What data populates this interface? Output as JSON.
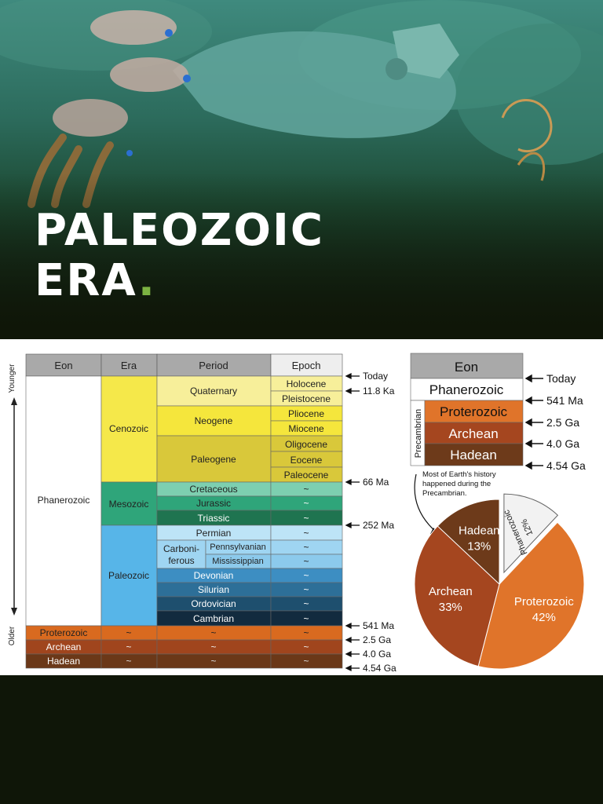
{
  "title": {
    "line1": "PALEOZOIC",
    "line2": "ERA",
    "dot": "."
  },
  "table": {
    "headers": [
      "Eon",
      "Era",
      "Period",
      "Epoch"
    ],
    "axis": {
      "top": "Younger",
      "bottom": "Older"
    },
    "eons": {
      "phanerozoic": "Phanerozoic",
      "proterozoic": "Proterozoic",
      "archean": "Archean",
      "hadean": "Hadean"
    },
    "eras": {
      "cenozoic": "Cenozoic",
      "mesozoic": "Mesozoic",
      "paleozoic": "Paleozoic"
    },
    "periods": {
      "quaternary": "Quaternary",
      "neogene": "Neogene",
      "paleogene": "Paleogene",
      "cretaceous": "Cretaceous",
      "jurassic": "Jurassic",
      "triassic": "Triassic",
      "permian": "Permian",
      "carboniferous_1": "Carboni-",
      "carboniferous_2": "ferous",
      "pennsylvanian": "Pennsylvanian",
      "mississippian": "Mississippian",
      "devonian": "Devonian",
      "silurian": "Silurian",
      "ordovician": "Ordovician",
      "cambrian": "Cambrian"
    },
    "epochs": {
      "holocene": "Holocene",
      "pleistocene": "Pleistocene",
      "pliocene": "Pliocene",
      "miocene": "Miocene",
      "oligocene": "Oligocene",
      "eocene": "Eocene",
      "paleocene": "Paleocene"
    },
    "tilde": "~",
    "markers": {
      "today": "Today",
      "m1": "11.8 Ka",
      "m2": "66 Ma",
      "m3": "252 Ma",
      "m4": "541 Ma",
      "m5": "2.5 Ga",
      "m6": "4.0 Ga",
      "m7": "4.54 Ga"
    }
  },
  "mini": {
    "header": "Eon",
    "phanerozoic": "Phanerozoic",
    "precambrian": "Precambrian",
    "proterozoic": "Proterozoic",
    "archean": "Archean",
    "hadean": "Hadean",
    "markers": {
      "today": "Today",
      "m1": "541 Ma",
      "m2": "2.5 Ga",
      "m3": "4.0 Ga",
      "m4": "4.54 Ga"
    }
  },
  "pie": {
    "note_1": "Most of Earth's history",
    "note_2": "happened during the",
    "note_3": "Precambrian.",
    "slices": [
      {
        "name": "Hadean",
        "pct": "13%",
        "value": 13,
        "color": "#6d3a1a"
      },
      {
        "name": "Phanerozoic",
        "pct": "12%",
        "value": 12,
        "color": "#f2f2f2"
      },
      {
        "name": "Proterozoic",
        "pct": "42%",
        "value": 42,
        "color": "#e0742a"
      },
      {
        "name": "Archean",
        "pct": "33%",
        "value": 33,
        "color": "#a5461f"
      }
    ]
  },
  "colors": {
    "background": "#0f1608",
    "accent": "#7cb342",
    "cenozoic": "#f5e84a",
    "mesozoic": "#2fa57a",
    "paleozoic": "#57b5e8"
  }
}
